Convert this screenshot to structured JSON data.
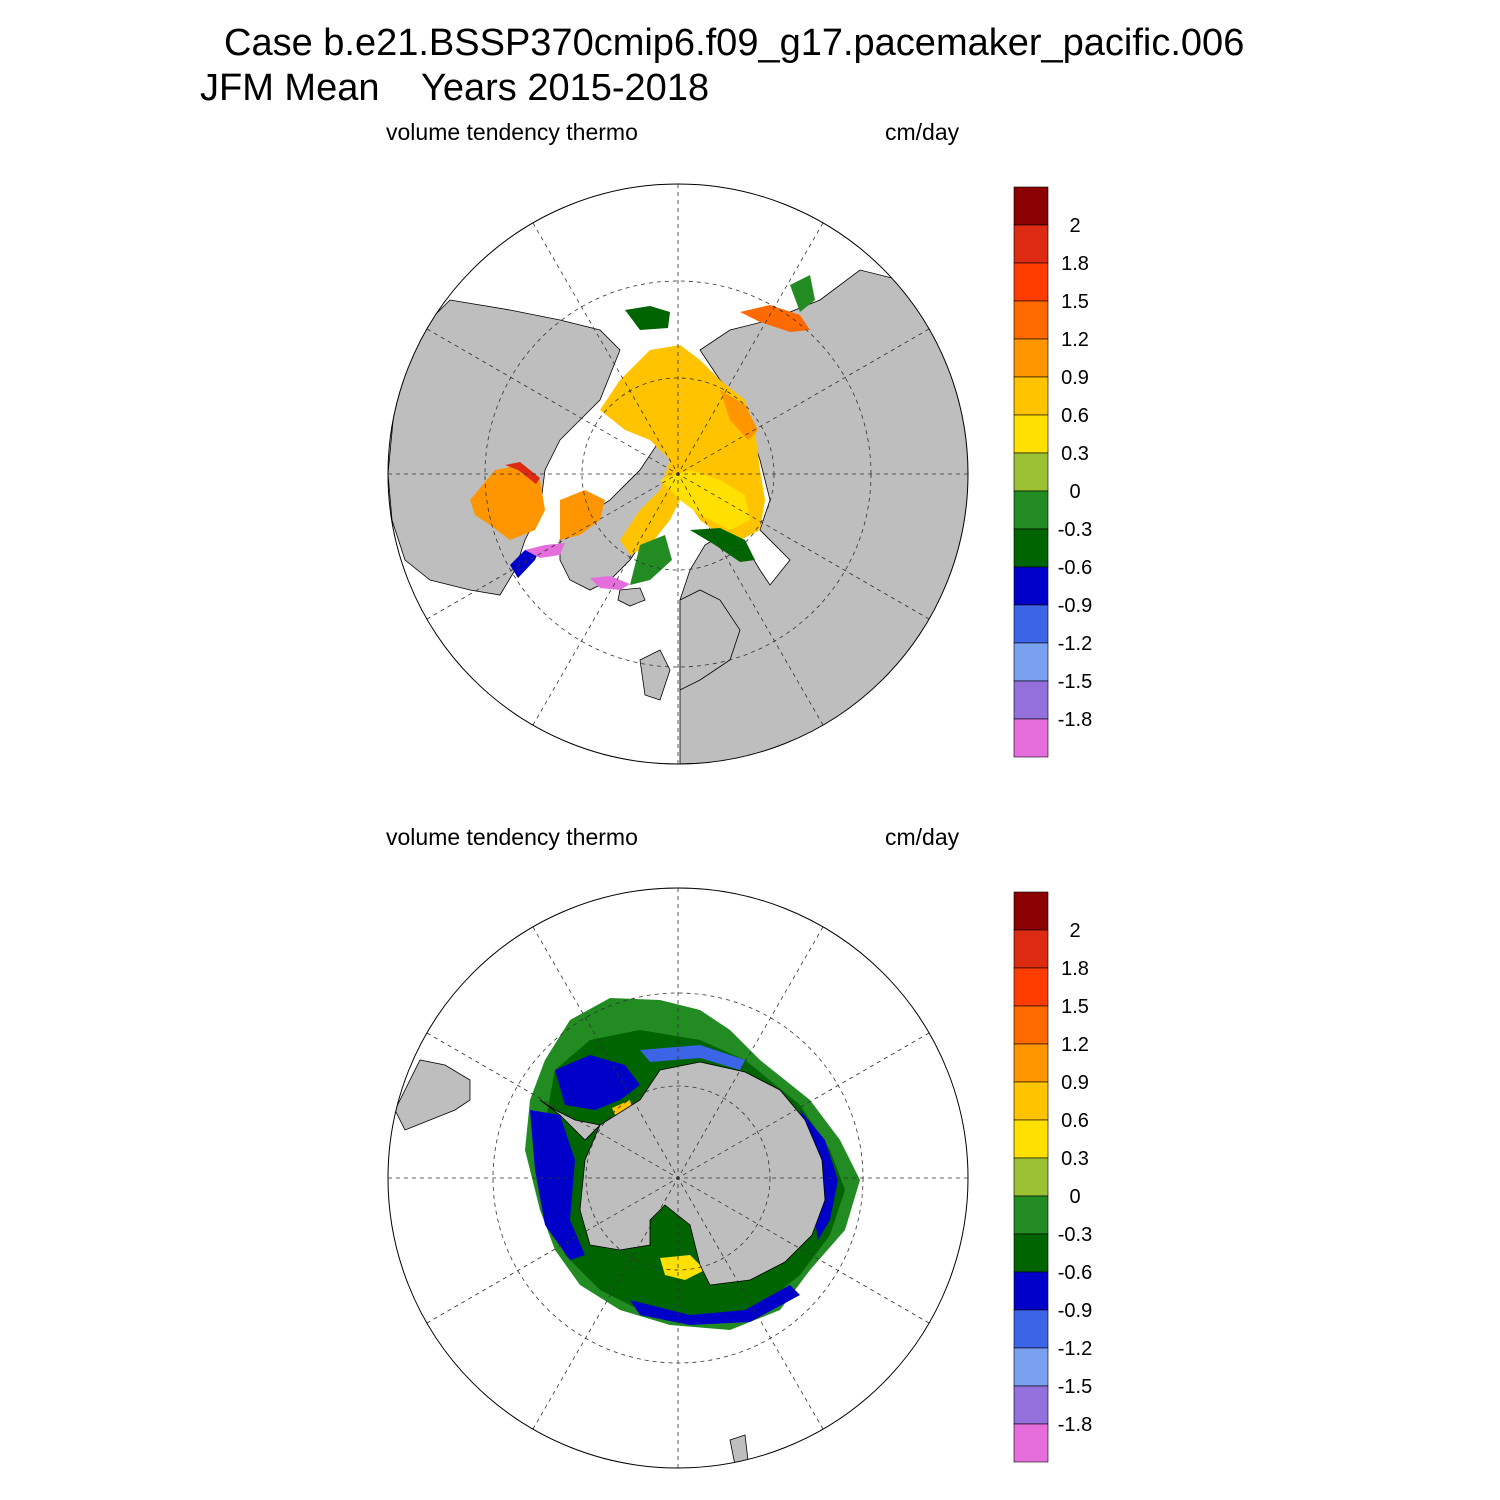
{
  "title": {
    "line1": "Case b.e21.BSSP370cmip6.f09_g17.pacemaker_pacific.006",
    "line2": "JFM Mean    Years 2015-2018"
  },
  "colors": {
    "land": "#bebebe",
    "ocean": "#ffffff",
    "outline": "#000000"
  },
  "colorbar": {
    "labels": [
      "2",
      "1.8",
      "1.5",
      "1.2",
      "0.9",
      "0.6",
      "0.3",
      "0",
      "-0.3",
      "-0.6",
      "-0.9",
      "-1.2",
      "-1.5",
      "-1.8"
    ],
    "colors": [
      "#8b0000",
      "#dd2a12",
      "#ff3c00",
      "#ff6a00",
      "#ff9600",
      "#ffc300",
      "#ffe000",
      "#9ac232",
      "#228b22",
      "#006400",
      "#0000c8",
      "#3c64e6",
      "#7aa0f0",
      "#9370db",
      "#e66edc"
    ]
  },
  "panels": [
    {
      "hemisphere": "north",
      "left_label": "volume tendency thermo",
      "right_label": "cm/day"
    },
    {
      "hemisphere": "south",
      "left_label": "volume tendency thermo",
      "right_label": "cm/day"
    }
  ]
}
